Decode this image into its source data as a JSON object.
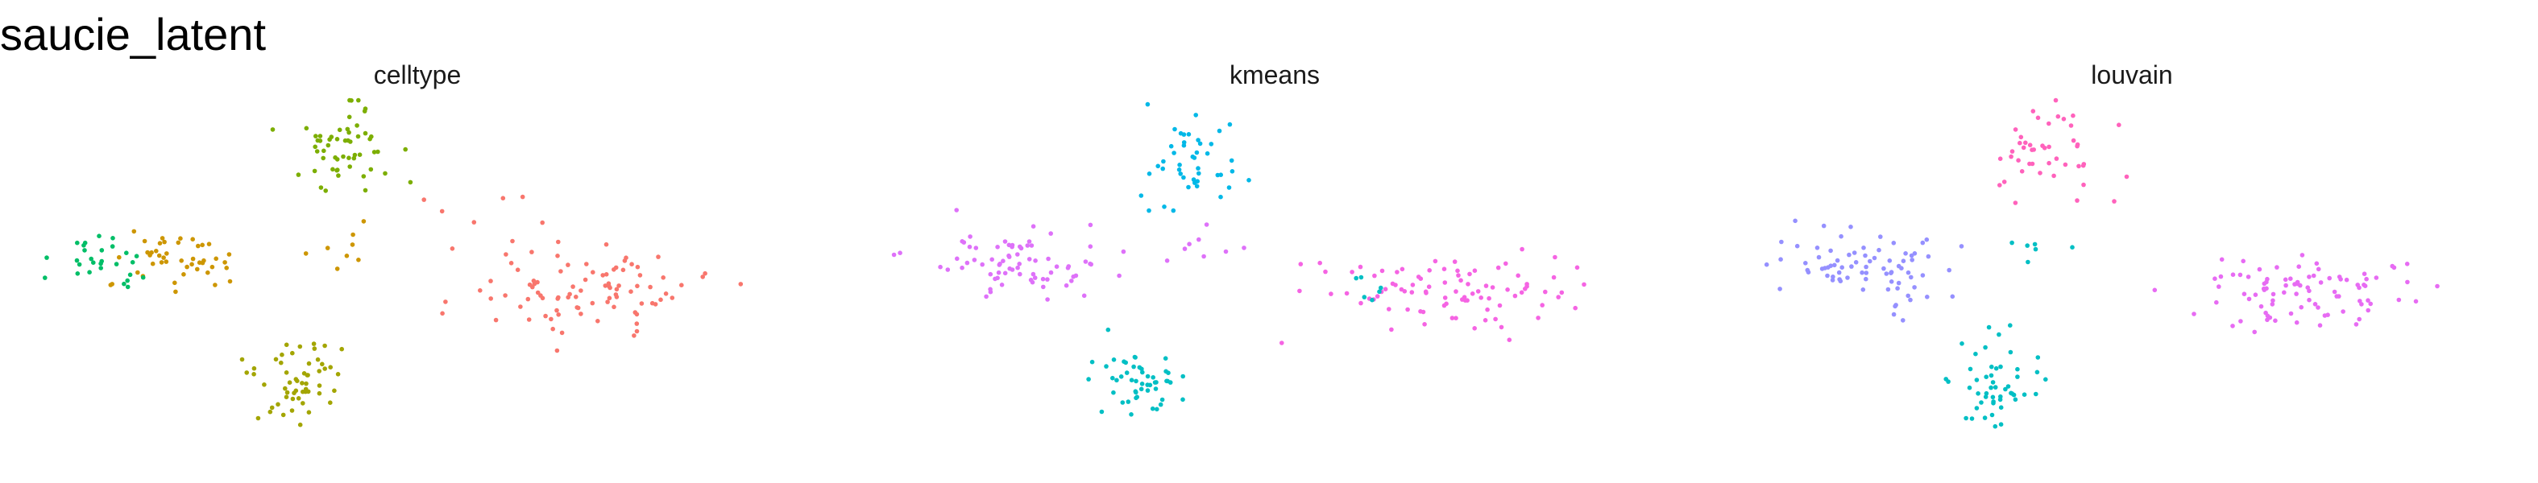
{
  "figure": {
    "title": "saucie_latent"
  },
  "chart_data": [
    {
      "type": "scatter",
      "title": "celltype",
      "axes": "hidden",
      "grid": false,
      "legend": "none",
      "xlim": [
        0,
        1
      ],
      "ylim": [
        0,
        1
      ],
      "clusters": [
        {
          "name": "",
          "color": "#F8766D",
          "cx": 0.72,
          "cy": 0.52,
          "sx": 0.075,
          "sy": 0.055,
          "n": 90
        },
        {
          "name": "",
          "color": "#7CAE00",
          "cx": 0.4,
          "cy": 0.16,
          "sx": 0.04,
          "sy": 0.065,
          "n": 55
        },
        {
          "name": "",
          "color": "#CD9600",
          "cx": 0.19,
          "cy": 0.44,
          "sx": 0.045,
          "sy": 0.045,
          "n": 45
        },
        {
          "name": "",
          "color": "#00BE67",
          "cx": 0.1,
          "cy": 0.45,
          "sx": 0.035,
          "sy": 0.04,
          "n": 28
        },
        {
          "name": "",
          "color": "#A3A500",
          "cx": 0.34,
          "cy": 0.77,
          "sx": 0.03,
          "sy": 0.06,
          "n": 55
        },
        {
          "name": "",
          "color": "#CD9600",
          "cx": 0.4,
          "cy": 0.41,
          "sx": 0.03,
          "sy": 0.03,
          "n": 8
        },
        {
          "name": "",
          "color": "#F8766D",
          "cx": 0.55,
          "cy": 0.32,
          "sx": 0.06,
          "sy": 0.06,
          "n": 8
        }
      ]
    },
    {
      "type": "scatter",
      "title": "kmeans",
      "axes": "hidden",
      "grid": false,
      "legend": "none",
      "xlim": [
        0,
        1
      ],
      "ylim": [
        0,
        1
      ],
      "clusters": [
        {
          "name": "",
          "color": "#00B8E7",
          "cx": 0.39,
          "cy": 0.16,
          "sx": 0.04,
          "sy": 0.065,
          "n": 45
        },
        {
          "name": "",
          "color": "#F564E3",
          "cx": 0.72,
          "cy": 0.52,
          "sx": 0.075,
          "sy": 0.055,
          "n": 90
        },
        {
          "name": "",
          "color": "#DE71F9",
          "cx": 0.16,
          "cy": 0.45,
          "sx": 0.055,
          "sy": 0.045,
          "n": 75
        },
        {
          "name": "",
          "color": "#00BFC4",
          "cx": 0.33,
          "cy": 0.78,
          "sx": 0.03,
          "sy": 0.06,
          "n": 50
        },
        {
          "name": "",
          "color": "#00BFC4",
          "cx": 0.63,
          "cy": 0.51,
          "sx": 0.02,
          "sy": 0.02,
          "n": 6
        },
        {
          "name": "",
          "color": "#DE71F9",
          "cx": 0.4,
          "cy": 0.41,
          "sx": 0.04,
          "sy": 0.04,
          "n": 8
        }
      ]
    },
    {
      "type": "scatter",
      "title": "louvain",
      "axes": "hidden",
      "grid": false,
      "legend": "none",
      "xlim": [
        0,
        1
      ],
      "ylim": [
        0,
        1
      ],
      "clusters": [
        {
          "name": "",
          "color": "#FF62BC",
          "cx": 0.4,
          "cy": 0.16,
          "sx": 0.04,
          "sy": 0.065,
          "n": 45
        },
        {
          "name": "",
          "color": "#E76BF3",
          "cx": 0.72,
          "cy": 0.52,
          "sx": 0.075,
          "sy": 0.055,
          "n": 90
        },
        {
          "name": "",
          "color": "#9590FF",
          "cx": 0.16,
          "cy": 0.45,
          "sx": 0.055,
          "sy": 0.045,
          "n": 70
        },
        {
          "name": "",
          "color": "#00BFC4",
          "cx": 0.33,
          "cy": 0.78,
          "sx": 0.03,
          "sy": 0.06,
          "n": 50
        },
        {
          "name": "",
          "color": "#00BFC4",
          "cx": 0.38,
          "cy": 0.41,
          "sx": 0.02,
          "sy": 0.02,
          "n": 6
        },
        {
          "name": "",
          "color": "#9590FF",
          "cx": 0.22,
          "cy": 0.55,
          "sx": 0.03,
          "sy": 0.03,
          "n": 8
        }
      ]
    }
  ]
}
